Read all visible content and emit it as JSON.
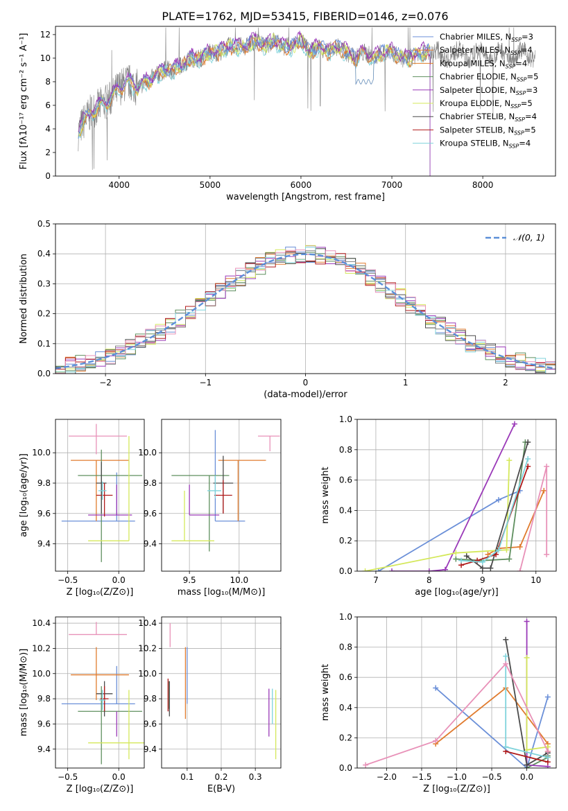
{
  "title": "PLATE=1762, MJD=53415, FIBERID=0146, z=0.076",
  "colors": [
    "#6a8fd8",
    "#e07b2e",
    "#de7b27",
    "#5e8f5e",
    "#9a39b8",
    "#d4e85a",
    "#4a4a4a",
    "#b01a1a",
    "#7fd3db"
  ],
  "series_colors_extra": {
    "pink": "#e891b8",
    "gray": "#808080"
  },
  "legend_labels": [
    "Chabrier MILES, N",
    "Salpeter MILES, N",
    "Kroupa MILES, N",
    "Chabrier ELODIE, N",
    "Salpeter ELODIE, N",
    "Kroupa ELODIE, N",
    "Chabrier STELIB, N",
    "Salpeter STELIB, N",
    "Kroupa STELIB, N"
  ],
  "legend_sub": "SSP",
  "legend_nssp": [
    "=3",
    "=4",
    "=4",
    "=5",
    "=3",
    "=5",
    "=4",
    "=5",
    "=4"
  ],
  "chart_data": [
    {
      "id": "spectrum",
      "type": "line",
      "xlabel": "wavelength [Angstrom, rest frame]",
      "ylabel": "Flux [fλ10⁻¹⁷ erg cm⁻² s⁻¹ A⁻¹]",
      "xlim": [
        3300,
        8800
      ],
      "ylim": [
        0,
        12.7
      ],
      "xticks": [
        4000,
        5000,
        6000,
        7000,
        8000
      ],
      "yticks": [
        0,
        2,
        4,
        6,
        8,
        10,
        12
      ],
      "x": [
        3550,
        3600,
        3650,
        3700,
        3800,
        3900,
        4000,
        4100,
        4200,
        4300,
        4400,
        4500,
        4600,
        4700,
        4800,
        4900,
        5000,
        5100,
        5200,
        5300,
        5400,
        5500,
        5600,
        5700,
        5800,
        5900,
        6000,
        6100,
        6200,
        6300,
        6400,
        6500,
        6600,
        6700,
        6800,
        6900,
        7000,
        7100,
        7200,
        7300,
        7400
      ],
      "y": [
        3.7,
        4.5,
        5.0,
        5.5,
        6.0,
        6.5,
        7.5,
        8.0,
        7.5,
        8.0,
        8.5,
        9.0,
        9.0,
        9.5,
        10.0,
        10.0,
        10.5,
        10.5,
        11.0,
        11.0,
        11.0,
        11.5,
        11.0,
        11.5,
        11.0,
        11.0,
        11.5,
        10.5,
        11.0,
        10.5,
        11.0,
        10.5,
        10.0,
        10.5,
        10.0,
        10.5,
        10.5,
        10.0,
        10.0,
        10.5,
        10.5
      ]
    },
    {
      "id": "residuals",
      "type": "step",
      "xlabel": "(data-model)/error",
      "ylabel": "Normed distribution",
      "xlim": [
        -2.5,
        2.5
      ],
      "ylim": [
        0,
        0.5
      ],
      "xticks": [
        -2,
        -1,
        0,
        1,
        2
      ],
      "xticklabels": [
        "−2",
        "−1",
        "0",
        "1",
        "2"
      ],
      "yticks": [
        0.0,
        0.1,
        0.2,
        0.3,
        0.4,
        0.5
      ],
      "yticklabels": [
        "0.0",
        "0.1",
        "0.2",
        "0.3",
        "0.4",
        "0.5"
      ],
      "legend": "𝒩(0, 1)",
      "gaussian": {
        "mu": 0,
        "sigma": 1
      },
      "bin_width": 0.1
    },
    {
      "id": "age_vs_Z",
      "type": "errorbar",
      "xlabel": "Z [log₁₀(Z/Z⊙)]",
      "ylabel": "age  [log₁₀(age/yr)]",
      "xlim": [
        -0.62,
        0.25
      ],
      "ylim": [
        9.22,
        10.22
      ],
      "xticks": [
        -0.5,
        0.0
      ],
      "xticklabels": [
        "−0.5",
        "0.0"
      ],
      "yticks": [
        9.4,
        9.6,
        9.8,
        10.0
      ],
      "yticklabels": [
        "9.4",
        "9.6",
        "9.8",
        "10.0"
      ],
      "points": [
        {
          "c": 0,
          "x": -0.02,
          "xerr": [
            0.54,
            0.18
          ],
          "y": 9.55,
          "yerr": [
            0.0,
            0.32
          ]
        },
        {
          "c": 1,
          "x": -0.22,
          "xerr": [
            0.25,
            0.32
          ],
          "y": 9.95,
          "yerr": [
            0.4,
            0.0
          ]
        },
        {
          "c": 3,
          "x": -0.17,
          "xerr": [
            0.23,
            0.4
          ],
          "y": 9.85,
          "yerr": [
            0.57,
            0.17
          ]
        },
        {
          "c": 4,
          "x": -0.02,
          "xerr": [
            0.28,
            0.15
          ],
          "y": 9.59,
          "yerr": [
            0.0,
            0.2
          ]
        },
        {
          "c": 5,
          "x": 0.1,
          "xerr": [
            0.4,
            0.0
          ],
          "y": 9.42,
          "yerr": [
            0.0,
            0.69
          ]
        },
        {
          "c": 6,
          "x": -0.17,
          "xerr": [
            0.05,
            0.05
          ],
          "y": 9.8,
          "yerr": [
            0.2,
            0.14
          ]
        },
        {
          "c": 7,
          "x": -0.14,
          "xerr": [
            0.08,
            0.08
          ],
          "y": 9.72,
          "yerr": [
            0.14,
            0.08
          ]
        },
        {
          "c": 8,
          "x": -0.16,
          "xerr": [
            0.04,
            0.04
          ],
          "y": 9.75,
          "yerr": [
            0.06,
            0.06
          ]
        },
        {
          "c": "pink",
          "x": -0.22,
          "xerr": [
            0.27,
            0.3
          ],
          "y": 10.11,
          "yerr": [
            0.12,
            0.08
          ]
        }
      ]
    },
    {
      "id": "age_vs_mass",
      "type": "errorbar",
      "xlabel": "mass [log₁₀(M/M⊙)]",
      "ylabel": "",
      "xlim": [
        9.22,
        10.42
      ],
      "ylim": [
        9.22,
        10.22
      ],
      "xticks": [
        9.5,
        10.0
      ],
      "xticklabels": [
        "9.5",
        "10.0"
      ],
      "yticks": [
        9.4,
        9.6,
        9.8,
        10.0
      ],
      "yticklabels": [
        "9.4",
        "9.6",
        "9.8",
        "10.0"
      ],
      "points": [
        {
          "c": 0,
          "x": 9.76,
          "xerr": [
            0.0,
            0.3
          ],
          "y": 9.55,
          "yerr": [
            0.0,
            0.6
          ]
        },
        {
          "c": 1,
          "x": 9.99,
          "xerr": [
            0.2,
            0.28
          ],
          "y": 9.95,
          "yerr": [
            0.4,
            0.0
          ]
        },
        {
          "c": 3,
          "x": 9.7,
          "xerr": [
            0.38,
            0.2
          ],
          "y": 9.85,
          "yerr": [
            0.5,
            0.0
          ]
        },
        {
          "c": 4,
          "x": 9.5,
          "xerr": [
            0.0,
            0.3
          ],
          "y": 9.59,
          "yerr": [
            0.0,
            0.2
          ]
        },
        {
          "c": 5,
          "x": 9.45,
          "xerr": [
            0.13,
            0.3
          ],
          "y": 9.42,
          "yerr": [
            0.0,
            0.33
          ]
        },
        {
          "c": 6,
          "x": 9.84,
          "xerr": [
            0.1,
            0.1
          ],
          "y": 9.8,
          "yerr": [
            0.2,
            0.18
          ]
        },
        {
          "c": 7,
          "x": 9.84,
          "xerr": [
            0.09,
            0.09
          ],
          "y": 9.72,
          "yerr": [
            0.12,
            0.1
          ]
        },
        {
          "c": 8,
          "x": 9.76,
          "xerr": [
            0.08,
            0.06
          ],
          "y": 9.75,
          "yerr": [
            0.05,
            0.1
          ]
        },
        {
          "c": "pink",
          "x": 10.31,
          "xerr": [
            0.12,
            0.1
          ],
          "y": 10.11,
          "yerr": [
            0.1,
            0.0
          ]
        }
      ]
    },
    {
      "id": "mass_weight_vs_age",
      "type": "line",
      "xlabel": "age  [log₁₀(age/yr)]",
      "ylabel": "mass weight",
      "xlim": [
        6.65,
        10.38
      ],
      "ylim": [
        0,
        1
      ],
      "xticks": [
        7,
        8,
        9,
        10
      ],
      "xticklabels": [
        "7",
        "8",
        "9",
        "10"
      ],
      "yticks": [
        0.0,
        0.2,
        0.4,
        0.6,
        0.8,
        1.0
      ],
      "yticklabels": [
        "0.0",
        "0.2",
        "0.4",
        "0.6",
        "0.8",
        "1.0"
      ],
      "series": [
        {
          "c": 0,
          "x": [
            7.05,
            9.3,
            9.7
          ],
          "y": [
            0.0,
            0.47,
            0.53
          ]
        },
        {
          "c": 1,
          "x": [
            9.1,
            9.3,
            9.7,
            10.15
          ],
          "y": [
            0.11,
            0.15,
            0.16,
            0.53
          ]
        },
        {
          "c": 3,
          "x": [
            8.5,
            9.0,
            9.5,
            9.8
          ],
          "y": [
            0.08,
            0.07,
            0.08,
            0.85
          ]
        },
        {
          "c": 4,
          "x": [
            7.3,
            8.0,
            8.3,
            9.6
          ],
          "y": [
            0.0,
            0.0,
            0.01,
            0.97
          ]
        },
        {
          "c": 5,
          "x": [
            6.8,
            8.5,
            9.45,
            9.5
          ],
          "y": [
            0.0,
            0.12,
            0.14,
            0.73
          ]
        },
        {
          "c": 6,
          "x": [
            8.7,
            9.0,
            9.15,
            9.85
          ],
          "y": [
            0.1,
            0.02,
            0.02,
            0.85
          ]
        },
        {
          "c": 7,
          "x": [
            8.6,
            8.9,
            9.25,
            9.85
          ],
          "y": [
            0.04,
            0.07,
            0.11,
            0.69
          ]
        },
        {
          "c": 8,
          "x": [
            8.6,
            9.0,
            9.3,
            9.85
          ],
          "y": [
            0.07,
            0.06,
            0.14,
            0.74
          ]
        },
        {
          "c": "pink",
          "x": [
            9.7,
            10.2,
            10.2
          ],
          "y": [
            0.0,
            0.69,
            0.11
          ]
        }
      ]
    },
    {
      "id": "mass_vs_Z",
      "type": "errorbar",
      "xlabel": "Z [log₁₀(Z/Z⊙)]",
      "ylabel": "mass [log₁₀(M/M⊙)]",
      "xlim": [
        -0.62,
        0.25
      ],
      "ylim": [
        9.25,
        10.45
      ],
      "xticks": [
        -0.5,
        0.0
      ],
      "xticklabels": [
        "−0.5",
        "0.0"
      ],
      "yticks": [
        9.4,
        9.6,
        9.8,
        10.0,
        10.2,
        10.4
      ],
      "yticklabels": [
        "9.4",
        "9.6",
        "9.8",
        "10.0",
        "10.2",
        "10.4"
      ],
      "points": [
        {
          "c": 0,
          "x": -0.02,
          "xerr": [
            0.54,
            0.18
          ],
          "y": 9.76,
          "yerr": [
            0.0,
            0.3
          ]
        },
        {
          "c": 1,
          "x": -0.22,
          "xerr": [
            0.25,
            0.32
          ],
          "y": 9.99,
          "yerr": [
            0.2,
            0.22
          ]
        },
        {
          "c": 3,
          "x": -0.17,
          "xerr": [
            0.23,
            0.4
          ],
          "y": 9.7,
          "yerr": [
            0.42,
            0.2
          ]
        },
        {
          "c": 4,
          "x": -0.02,
          "xerr": [
            0.0,
            0.0
          ],
          "y": 9.7,
          "yerr": [
            0.2,
            0.0
          ]
        },
        {
          "c": 5,
          "x": 0.1,
          "xerr": [
            0.4,
            0.2
          ],
          "y": 9.45,
          "yerr": [
            0.13,
            0.42
          ]
        },
        {
          "c": 6,
          "x": -0.14,
          "xerr": [
            0.08,
            0.08
          ],
          "y": 9.84,
          "yerr": [
            0.18,
            0.1
          ]
        },
        {
          "c": 7,
          "x": -0.14,
          "xerr": [
            0.04,
            0.04
          ],
          "y": 9.8,
          "yerr": [
            0.1,
            0.1
          ]
        },
        {
          "c": 8,
          "x": -0.16,
          "xerr": [
            0.03,
            0.03
          ],
          "y": 9.79,
          "yerr": [
            0.08,
            0.08
          ]
        },
        {
          "c": "pink",
          "x": -0.22,
          "xerr": [
            0.27,
            0.3
          ],
          "y": 10.31,
          "yerr": [
            0.0,
            0.1
          ]
        }
      ]
    },
    {
      "id": "mass_vs_EBV",
      "type": "errorbar",
      "xlabel": "E(B-V)",
      "ylabel": "",
      "xlim": [
        0.025,
        0.375
      ],
      "ylim": [
        9.25,
        10.45
      ],
      "xticks": [
        0.1,
        0.2,
        0.3
      ],
      "xticklabels": [
        "0.1",
        "0.2",
        "0.3"
      ],
      "yticks": [
        9.4,
        9.6,
        9.8,
        10.0,
        10.2,
        10.4
      ],
      "yticklabels": [
        "9.4",
        "9.6",
        "9.8",
        "10.0",
        "10.2",
        "10.4"
      ],
      "points": [
        {
          "c": 0,
          "x": 0.1,
          "xerr": [
            0,
            0
          ],
          "y": 9.76,
          "yerr": [
            0.0,
            0.45
          ]
        },
        {
          "c": 1,
          "x": 0.095,
          "xerr": [
            0,
            0
          ],
          "y": 9.99,
          "yerr": [
            0.35,
            0.22
          ]
        },
        {
          "c": 3,
          "x": 0.045,
          "xerr": [
            0,
            0
          ],
          "y": 9.84,
          "yerr": [
            0.12,
            0.1
          ]
        },
        {
          "c": 4,
          "x": 0.34,
          "xerr": [
            0,
            0
          ],
          "y": 9.7,
          "yerr": [
            0.2,
            0.18
          ]
        },
        {
          "c": 5,
          "x": 0.36,
          "xerr": [
            0,
            0
          ],
          "y": 9.45,
          "yerr": [
            0.13,
            0.42
          ]
        },
        {
          "c": 6,
          "x": 0.048,
          "xerr": [
            0,
            0
          ],
          "y": 9.84,
          "yerr": [
            0.18,
            0.1
          ]
        },
        {
          "c": 7,
          "x": 0.044,
          "xerr": [
            0,
            0
          ],
          "y": 9.8,
          "yerr": [
            0.1,
            0.16
          ]
        },
        {
          "c": 8,
          "x": 0.35,
          "xerr": [
            0,
            0
          ],
          "y": 9.7,
          "yerr": [
            0.1,
            0.18
          ]
        },
        {
          "c": "pink",
          "x": 0.05,
          "xerr": [
            0,
            0
          ],
          "y": 10.31,
          "yerr": [
            0.1,
            0.09
          ]
        }
      ]
    },
    {
      "id": "mass_weight_vs_Z",
      "type": "line",
      "xlabel": "Z [log₁₀(Z/Z⊙)]",
      "ylabel": "mass weight",
      "xlim": [
        -2.42,
        0.42
      ],
      "ylim": [
        0,
        1
      ],
      "xticks": [
        -2.0,
        -1.5,
        -1.0,
        -0.5,
        0.0
      ],
      "xticklabels": [
        "−2.0",
        "−1.5",
        "−1.0",
        "−0.5",
        "0.0"
      ],
      "yticks": [
        0.0,
        0.2,
        0.4,
        0.6,
        0.8,
        1.0
      ],
      "yticklabels": [
        "0.0",
        "0.2",
        "0.4",
        "0.6",
        "0.8",
        "1.0"
      ],
      "series": [
        {
          "c": 0,
          "x": [
            -1.3,
            0.0,
            0.3
          ],
          "y": [
            0.53,
            0.0,
            0.47
          ]
        },
        {
          "c": 1,
          "x": [
            -1.3,
            -0.3,
            0.3,
            0.3
          ],
          "y": [
            0.16,
            0.53,
            0.16,
            0.11
          ]
        },
        {
          "c": 3,
          "x": [
            0.0,
            0.3,
            0.3
          ],
          "y": [
            0.0,
            0.07,
            0.08
          ]
        },
        {
          "c": 4,
          "x": [
            0.0,
            0.0,
            0.3
          ],
          "y": [
            0.97,
            0.02,
            0.01
          ]
        },
        {
          "c": 5,
          "x": [
            0.0,
            0.0,
            0.3
          ],
          "y": [
            0.73,
            0.12,
            0.14
          ]
        },
        {
          "c": 6,
          "x": [
            -0.3,
            0.0,
            0.3
          ],
          "y": [
            0.85,
            0.02,
            0.1
          ]
        },
        {
          "c": 7,
          "x": [
            -0.3,
            0.3,
            0.3
          ],
          "y": [
            0.11,
            0.04,
            0.07
          ]
        },
        {
          "c": 8,
          "x": [
            -0.3,
            -0.3,
            0.3
          ],
          "y": [
            0.74,
            0.14,
            0.07
          ]
        },
        {
          "c": "pink",
          "x": [
            -2.3,
            -1.3,
            -0.3,
            0.3
          ],
          "y": [
            0.02,
            0.18,
            0.69,
            0.11
          ]
        }
      ]
    }
  ]
}
